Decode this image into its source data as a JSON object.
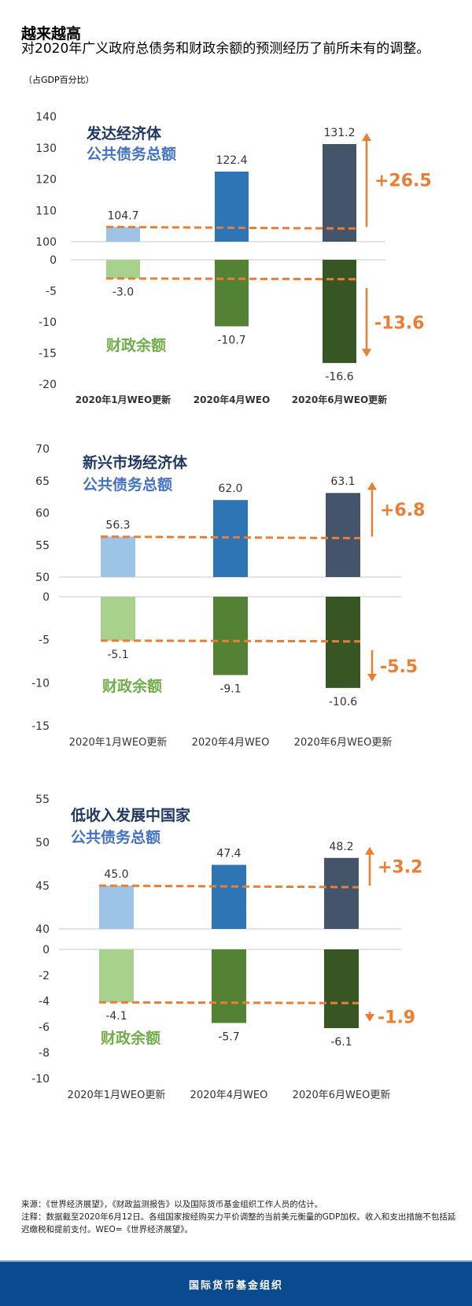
{
  "header": {
    "title": "越来越高",
    "subtitle": "对2020年广义政府总债务和财政余额的预测经历了前所未有的调整。",
    "unit": "（占GDP百分比）"
  },
  "colors": {
    "debt": [
      "#9dc3e6",
      "#2e75b6",
      "#44546a"
    ],
    "balance": [
      "#a9d18e",
      "#548235",
      "#375623"
    ],
    "accent": "#ed7d31",
    "group_title": "#1f3864",
    "debt_label": "#4472c4",
    "balance_label": "#70ad47"
  },
  "chart_data": [
    {
      "type": "bar",
      "title": "发达经济体",
      "debt_label": "公共债务总额",
      "balance_label": "财政余额",
      "categories": [
        "2020年1月WEO更新",
        "2020年4月WEO",
        "2020年6月WEO更新"
      ],
      "series": [
        {
          "name": "公共债务总额",
          "values": [
            104.7,
            122.4,
            131.2
          ],
          "labels": [
            "104.7",
            "122.4",
            "131.2"
          ]
        },
        {
          "name": "财政余额",
          "values": [
            -3.0,
            -10.7,
            -16.6
          ],
          "labels": [
            "-3.0",
            "-10.7",
            "-16.6"
          ]
        }
      ],
      "debt_ylim": [
        100,
        140
      ],
      "debt_ticks": [
        "140",
        "130",
        "120",
        "110",
        "100"
      ],
      "balance_ylim": [
        -20,
        0
      ],
      "balance_ticks": [
        "0",
        "-5",
        "-10",
        "-15",
        "-20"
      ],
      "debt_change": "+26.5",
      "balance_change": "-13.6"
    },
    {
      "type": "bar",
      "title": "新兴市场经济体",
      "debt_label": "公共债务总额",
      "balance_label": "财政余额",
      "categories": [
        "2020年1月WEO更新",
        "2020年4月WEO",
        "2020年6月WEO更新"
      ],
      "series": [
        {
          "name": "公共债务总额",
          "values": [
            56.3,
            62.0,
            63.1
          ],
          "labels": [
            "56.3",
            "62.0",
            "63.1"
          ]
        },
        {
          "name": "财政余额",
          "values": [
            -5.1,
            -9.1,
            -10.6
          ],
          "labels": [
            "-5.1",
            "-9.1",
            "-10.6"
          ]
        }
      ],
      "debt_ylim": [
        50,
        70
      ],
      "debt_ticks": [
        "70",
        "65",
        "60",
        "55",
        "50"
      ],
      "balance_ylim": [
        -15,
        0
      ],
      "balance_ticks": [
        "0",
        "-5",
        "-10",
        "-15"
      ],
      "debt_change": "+6.8",
      "balance_change": "-5.5"
    },
    {
      "type": "bar",
      "title": "低收入发展中国家",
      "debt_label": "公共债务总额",
      "balance_label": "财政余额",
      "categories": [
        "2020年1月WEO更新",
        "2020年4月WEO",
        "2020年6月WEO更新"
      ],
      "series": [
        {
          "name": "公共债务总额",
          "values": [
            45.0,
            47.4,
            48.2
          ],
          "labels": [
            "45.0",
            "47.4",
            "48.2"
          ]
        },
        {
          "name": "财政余额",
          "values": [
            -4.1,
            -5.7,
            -6.1
          ],
          "labels": [
            "-4.1",
            "-5.7",
            "-6.1"
          ]
        }
      ],
      "debt_ylim": [
        40,
        55
      ],
      "debt_ticks": [
        "55",
        "50",
        "45",
        "40"
      ],
      "balance_ylim": [
        -10,
        0
      ],
      "balance_ticks": [
        "0",
        "-2",
        "-4",
        "-6",
        "-8",
        "-10"
      ],
      "debt_change": "+3.2",
      "balance_change": "-1.9"
    }
  ],
  "notes": {
    "source": "来源：《世界经济展望》，《财政监测报告》以及国际货币基金组织工作人员的估计。",
    "note": "注释：数据截至2020年6月12日。各组国家按经购买力平价调整的当前美元衡量的GDP加权。收入和支出措施不包括延迟缴税和提前支付。WEO=《世界经济展望》。"
  },
  "footer": {
    "org": "国际货币基金组织"
  }
}
